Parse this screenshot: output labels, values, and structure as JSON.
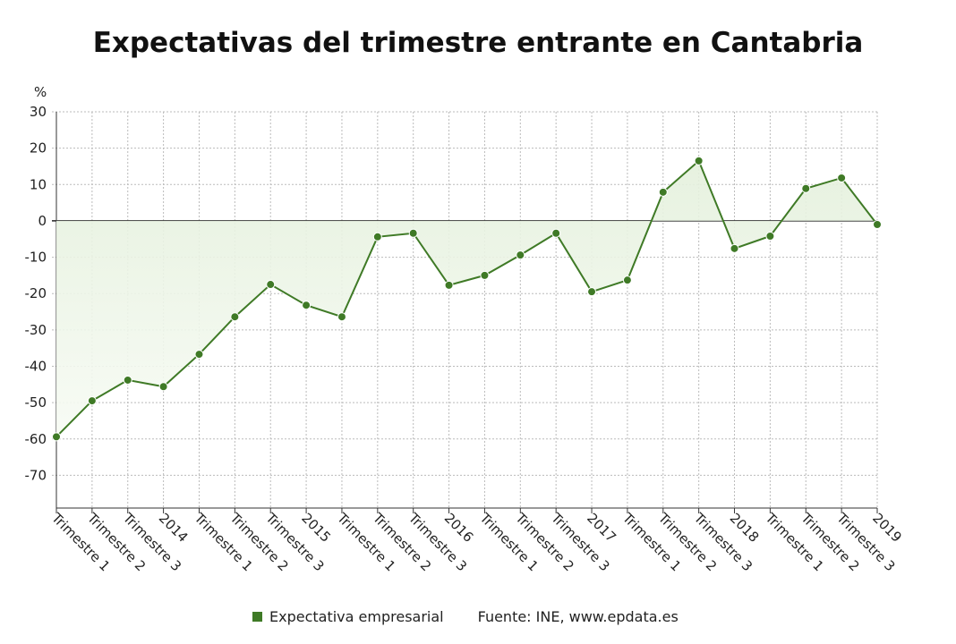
{
  "chart_data": {
    "type": "line",
    "title": "Expectativas del trimestre entrante en Cantabria",
    "ylabel": "%",
    "xlabel": "",
    "ylim": [
      -79,
      30
    ],
    "yticks": [
      30,
      20,
      10,
      0,
      -10,
      -20,
      -30,
      -40,
      -50,
      -60,
      -70
    ],
    "grid": true,
    "categories": [
      "Trimestre 1",
      "Trimestre 2",
      "Trimestre 3",
      "2014",
      "Trimestre 1",
      "Trimestre 2",
      "Trimestre 3",
      "2015",
      "Trimestre 1",
      "Trimestre 2",
      "Trimestre 3",
      "2016",
      "Trimestre 1",
      "Trimestre 2",
      "Trimestre 3",
      "2017",
      "Trimestre 1",
      "Trimestre 2",
      "Trimestre 3",
      "2018",
      "Trimestre 1",
      "Trimestre 2",
      "Trimestre 3",
      "2019"
    ],
    "series": [
      {
        "name": "Expectativa empresarial",
        "color": "#3f7a26",
        "values": [
          -59.4,
          -49.5,
          -43.8,
          -45.6,
          -36.7,
          -26.4,
          -17.5,
          -23.2,
          -26.4,
          -4.4,
          -3.4,
          -17.7,
          -15.0,
          -9.4,
          -3.4,
          -19.5,
          -16.3,
          7.9,
          16.5,
          -7.6,
          -4.2,
          8.9,
          11.8,
          -1.0
        ]
      }
    ],
    "legend_position": "bottom",
    "source": "Fuente: INE, www.epdata.es"
  }
}
